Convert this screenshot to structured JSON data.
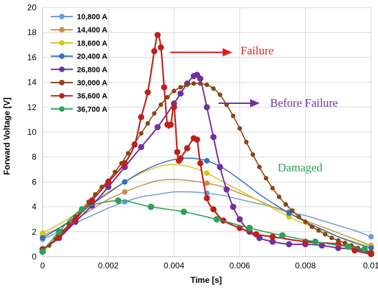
{
  "chart_data": {
    "type": "line",
    "title": "",
    "xlabel": "Time [s]",
    "ylabel": "Forward Voltage [V]",
    "xlim": [
      0,
      0.01
    ],
    "ylim": [
      0,
      20
    ],
    "xticks": [
      "0",
      "0.002",
      "0.004",
      "0.006",
      "0.008",
      "0.01"
    ],
    "yticks": [
      "0",
      "2",
      "4",
      "6",
      "8",
      "10",
      "12",
      "14",
      "16",
      "18",
      "20"
    ],
    "grid": true,
    "legend_position": "top-left",
    "series": [
      {
        "name": "10,800 A",
        "color": "#6a9bd8",
        "marker_every": 5,
        "marker_size": 3.5,
        "stroke_width": 1.5,
        "x": [
          0,
          0.0005,
          0.001,
          0.0015,
          0.002,
          0.0025,
          0.003,
          0.0035,
          0.004,
          0.0045,
          0.005,
          0.0055,
          0.006,
          0.0065,
          0.007,
          0.0075,
          0.008,
          0.0085,
          0.009,
          0.0095,
          0.01
        ],
        "y": [
          1.4,
          2.0,
          2.7,
          3.3,
          3.9,
          4.4,
          4.8,
          5.0,
          5.2,
          5.2,
          5.1,
          4.9,
          4.6,
          4.3,
          4.0,
          3.6,
          3.3,
          2.9,
          2.5,
          2.1,
          1.6
        ]
      },
      {
        "name": "14,400 A",
        "color": "#c8904a",
        "marker_every": 5,
        "marker_size": 3.5,
        "stroke_width": 1.5,
        "x": [
          0,
          0.0005,
          0.001,
          0.0015,
          0.002,
          0.0025,
          0.003,
          0.0035,
          0.004,
          0.0045,
          0.005,
          0.0055,
          0.006,
          0.0065,
          0.007,
          0.0075,
          0.008,
          0.0085,
          0.009,
          0.0095,
          0.01
        ],
        "y": [
          1.7,
          2.3,
          3.0,
          3.8,
          4.6,
          5.2,
          5.7,
          6.1,
          6.2,
          6.1,
          5.9,
          5.6,
          5.1,
          4.6,
          4.0,
          3.5,
          2.9,
          2.4,
          1.9,
          1.4,
          0.9
        ]
      },
      {
        "name": "18,600 A",
        "color": "#d4c41a",
        "marker_every": 5,
        "marker_size": 3.5,
        "stroke_width": 1.5,
        "x": [
          0,
          0.0005,
          0.001,
          0.0015,
          0.002,
          0.0025,
          0.003,
          0.0035,
          0.004,
          0.0045,
          0.005,
          0.0055,
          0.006,
          0.0065,
          0.007,
          0.0075,
          0.008,
          0.0085,
          0.009,
          0.0095,
          0.01
        ],
        "y": [
          1.9,
          2.6,
          3.4,
          4.3,
          5.2,
          6.0,
          6.7,
          7.2,
          7.4,
          7.2,
          6.7,
          6.0,
          5.3,
          4.6,
          3.9,
          3.2,
          2.6,
          2.1,
          1.6,
          1.2,
          0.8
        ]
      },
      {
        "name": "20,400 A",
        "color": "#2f6fbd",
        "marker_every": 5,
        "marker_size": 3.5,
        "stroke_width": 1.5,
        "x": [
          0,
          0.0005,
          0.001,
          0.0015,
          0.002,
          0.0025,
          0.003,
          0.0035,
          0.004,
          0.0045,
          0.005,
          0.0055,
          0.006,
          0.0065,
          0.007,
          0.0075,
          0.008,
          0.0085,
          0.009,
          0.0095,
          0.01
        ],
        "y": [
          1.5,
          2.3,
          3.2,
          4.2,
          5.1,
          6.0,
          6.8,
          7.4,
          7.8,
          7.9,
          7.7,
          7.1,
          6.2,
          5.2,
          4.3,
          3.5,
          2.8,
          2.2,
          1.6,
          1.1,
          0.7
        ]
      },
      {
        "name": "26,800 A",
        "color": "#7030a0",
        "marker_every": 1,
        "marker_size": 4,
        "stroke_width": 2,
        "x": [
          0,
          0.0005,
          0.001,
          0.0015,
          0.002,
          0.0025,
          0.003,
          0.0035,
          0.004,
          0.0042,
          0.0044,
          0.0046,
          0.0047,
          0.0048,
          0.005,
          0.0052,
          0.0054,
          0.0056,
          0.0058,
          0.006,
          0.0063,
          0.0066,
          0.007,
          0.0075,
          0.008,
          0.0085,
          0.009,
          0.0095,
          0.01
        ],
        "y": [
          0.6,
          1.5,
          2.8,
          4.1,
          5.6,
          7.2,
          8.8,
          10.4,
          12.3,
          13.1,
          13.9,
          14.5,
          14.6,
          14.3,
          12.0,
          9.6,
          7.2,
          5.4,
          4.0,
          3.0,
          2.0,
          1.5,
          1.2,
          1.0,
          1.0,
          0.9,
          0.7,
          0.6,
          0.3
        ]
      },
      {
        "name": "30,000 A",
        "color": "#8b4513",
        "marker_every": 1,
        "marker_size": 2.8,
        "stroke_width": 1.6,
        "x": [
          0,
          0.0002,
          0.0004,
          0.0006,
          0.0008,
          0.001,
          0.0012,
          0.0014,
          0.0016,
          0.0018,
          0.002,
          0.0022,
          0.0024,
          0.0026,
          0.0028,
          0.003,
          0.0032,
          0.0034,
          0.0036,
          0.0038,
          0.004,
          0.0042,
          0.0044,
          0.0046,
          0.0048,
          0.005,
          0.0052,
          0.0054,
          0.0056,
          0.0058,
          0.006,
          0.0062,
          0.0064,
          0.0066,
          0.0068,
          0.007,
          0.0072,
          0.0074,
          0.0076,
          0.0078,
          0.008,
          0.0082,
          0.0084,
          0.0086,
          0.0088,
          0.009,
          0.0092,
          0.0094,
          0.0096,
          0.0098,
          0.01
        ],
        "y": [
          0.5,
          0.9,
          1.4,
          2.0,
          2.6,
          3.2,
          3.8,
          4.4,
          5.0,
          5.6,
          6.1,
          6.8,
          7.5,
          8.3,
          9.1,
          9.9,
          10.7,
          11.5,
          12.2,
          12.8,
          13.3,
          13.6,
          13.8,
          13.9,
          13.9,
          13.8,
          13.5,
          13.0,
          12.2,
          11.3,
          10.3,
          9.2,
          8.2,
          7.2,
          6.3,
          5.5,
          4.8,
          4.2,
          3.7,
          3.2,
          2.8,
          2.4,
          2.1,
          1.8,
          1.5,
          1.3,
          1.1,
          0.9,
          0.7,
          0.5,
          0.4
        ]
      },
      {
        "name": "36,600 A",
        "color": "#c0201a",
        "marker_every": 1,
        "marker_size": 4,
        "stroke_width": 2.2,
        "x": [
          0,
          0.0005,
          0.001,
          0.0015,
          0.002,
          0.0025,
          0.0028,
          0.003,
          0.0032,
          0.0034,
          0.0035,
          0.0036,
          0.0037,
          0.0038,
          0.0039,
          0.004,
          0.0041,
          0.00415,
          0.0042,
          0.0044,
          0.0046,
          0.0047,
          0.0048,
          0.005,
          0.0052,
          0.0055,
          0.006,
          0.0065,
          0.007,
          0.008,
          0.009,
          0.0095,
          0.01
        ],
        "y": [
          0.6,
          1.6,
          3.0,
          4.5,
          6.0,
          7.5,
          9.0,
          11.2,
          13.2,
          16.5,
          17.8,
          16.8,
          13.6,
          10.6,
          10.6,
          12.0,
          8.4,
          7.7,
          7.9,
          8.7,
          9.5,
          9.4,
          7.5,
          4.7,
          3.8,
          2.9,
          2.3,
          1.8,
          1.6,
          1.2,
          1.0,
          0.5,
          0.2
        ]
      },
      {
        "name": "36,700 A",
        "color": "#2ea05a",
        "marker_every": 1,
        "marker_size": 4.2,
        "stroke_width": 1.6,
        "x": [
          0,
          0.0005,
          0.0012,
          0.0023,
          0.0033,
          0.0043,
          0.0053,
          0.0063,
          0.0073,
          0.0083,
          0.0093,
          0.0098
        ],
        "y": [
          0.4,
          2.0,
          3.8,
          4.5,
          4.0,
          3.6,
          3.0,
          2.3,
          1.7,
          1.2,
          0.8,
          0.6
        ]
      }
    ],
    "annotations": [
      {
        "text": "Failure",
        "color": "#e02020"
      },
      {
        "text": "Before Failure",
        "color": "#7030a0"
      },
      {
        "text": "Damaged",
        "color": "#2ea05a"
      }
    ]
  }
}
